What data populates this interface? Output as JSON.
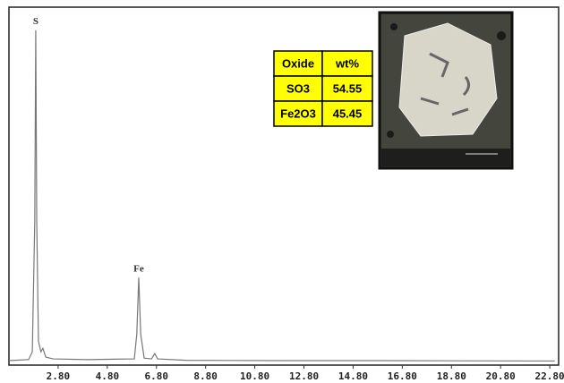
{
  "chart_data": {
    "type": "line",
    "x": [
      0.8,
      1.6,
      1.75,
      1.85,
      1.89,
      1.93,
      2.0,
      2.1,
      2.18,
      2.3,
      2.6,
      4,
      5.9,
      6.0,
      6.08,
      6.16,
      6.3,
      6.6,
      6.73,
      6.85,
      8,
      12,
      16,
      23
    ],
    "values": [
      0.5,
      0.8,
      3,
      40,
      94,
      40,
      6,
      3,
      4,
      1.5,
      1,
      0.8,
      1,
      8,
      24,
      8,
      1.2,
      1,
      2.5,
      1,
      0.6,
      0.5,
      0.5,
      0.4
    ],
    "color": "#777",
    "xlim": [
      0.8,
      23.16
    ],
    "ylim": [
      0,
      100
    ],
    "xticks": [
      {
        "value": 2.8,
        "label": "2.80"
      },
      {
        "value": 4.8,
        "label": "4.80"
      },
      {
        "value": 6.8,
        "label": "6.80"
      },
      {
        "value": 8.8,
        "label": "8.80"
      },
      {
        "value": 10.8,
        "label": "10.80"
      },
      {
        "value": 12.8,
        "label": "12.80"
      },
      {
        "value": 14.8,
        "label": "14.80"
      },
      {
        "value": 16.8,
        "label": "16.80"
      },
      {
        "value": 18.8,
        "label": "18.80"
      },
      {
        "value": 20.8,
        "label": "20.80"
      },
      {
        "value": 22.8,
        "label": "22.80"
      }
    ],
    "annotations": [
      {
        "text": "S",
        "x": 1.89,
        "y": 94
      },
      {
        "text": "Fe",
        "x": 6.08,
        "y": 24
      }
    ],
    "table": {
      "header": [
        "Oxide",
        "wt%"
      ],
      "rows": [
        [
          "SO3",
          54.55
        ],
        [
          "Fe2O3",
          45.45
        ]
      ]
    }
  }
}
